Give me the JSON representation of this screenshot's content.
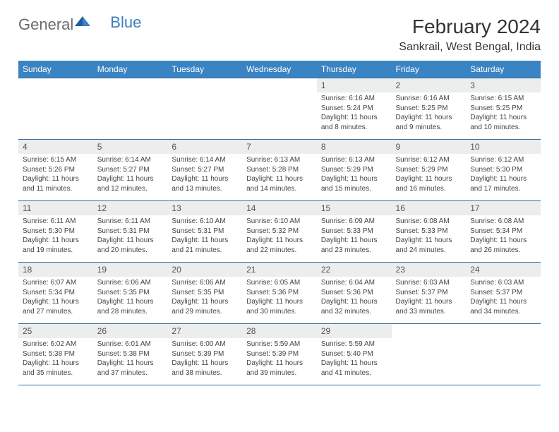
{
  "brand": {
    "part1": "General",
    "part2": "Blue"
  },
  "title": "February 2024",
  "location": "Sankrail, West Bengal, India",
  "colors": {
    "header_bg": "#3a84c4",
    "header_text": "#ffffff",
    "daynum_bg": "#eceded",
    "cell_border": "#3a6e99",
    "logo_blue": "#3a7fbd",
    "logo_gray": "#6b6b6b"
  },
  "weekdays": [
    "Sunday",
    "Monday",
    "Tuesday",
    "Wednesday",
    "Thursday",
    "Friday",
    "Saturday"
  ],
  "grid": {
    "first_weekday_index": 4,
    "days_in_month": 29
  },
  "days": {
    "1": {
      "sunrise": "6:16 AM",
      "sunset": "5:24 PM",
      "daylight": "11 hours and 8 minutes."
    },
    "2": {
      "sunrise": "6:16 AM",
      "sunset": "5:25 PM",
      "daylight": "11 hours and 9 minutes."
    },
    "3": {
      "sunrise": "6:15 AM",
      "sunset": "5:25 PM",
      "daylight": "11 hours and 10 minutes."
    },
    "4": {
      "sunrise": "6:15 AM",
      "sunset": "5:26 PM",
      "daylight": "11 hours and 11 minutes."
    },
    "5": {
      "sunrise": "6:14 AM",
      "sunset": "5:27 PM",
      "daylight": "11 hours and 12 minutes."
    },
    "6": {
      "sunrise": "6:14 AM",
      "sunset": "5:27 PM",
      "daylight": "11 hours and 13 minutes."
    },
    "7": {
      "sunrise": "6:13 AM",
      "sunset": "5:28 PM",
      "daylight": "11 hours and 14 minutes."
    },
    "8": {
      "sunrise": "6:13 AM",
      "sunset": "5:29 PM",
      "daylight": "11 hours and 15 minutes."
    },
    "9": {
      "sunrise": "6:12 AM",
      "sunset": "5:29 PM",
      "daylight": "11 hours and 16 minutes."
    },
    "10": {
      "sunrise": "6:12 AM",
      "sunset": "5:30 PM",
      "daylight": "11 hours and 17 minutes."
    },
    "11": {
      "sunrise": "6:11 AM",
      "sunset": "5:30 PM",
      "daylight": "11 hours and 19 minutes."
    },
    "12": {
      "sunrise": "6:11 AM",
      "sunset": "5:31 PM",
      "daylight": "11 hours and 20 minutes."
    },
    "13": {
      "sunrise": "6:10 AM",
      "sunset": "5:31 PM",
      "daylight": "11 hours and 21 minutes."
    },
    "14": {
      "sunrise": "6:10 AM",
      "sunset": "5:32 PM",
      "daylight": "11 hours and 22 minutes."
    },
    "15": {
      "sunrise": "6:09 AM",
      "sunset": "5:33 PM",
      "daylight": "11 hours and 23 minutes."
    },
    "16": {
      "sunrise": "6:08 AM",
      "sunset": "5:33 PM",
      "daylight": "11 hours and 24 minutes."
    },
    "17": {
      "sunrise": "6:08 AM",
      "sunset": "5:34 PM",
      "daylight": "11 hours and 26 minutes."
    },
    "18": {
      "sunrise": "6:07 AM",
      "sunset": "5:34 PM",
      "daylight": "11 hours and 27 minutes."
    },
    "19": {
      "sunrise": "6:06 AM",
      "sunset": "5:35 PM",
      "daylight": "11 hours and 28 minutes."
    },
    "20": {
      "sunrise": "6:06 AM",
      "sunset": "5:35 PM",
      "daylight": "11 hours and 29 minutes."
    },
    "21": {
      "sunrise": "6:05 AM",
      "sunset": "5:36 PM",
      "daylight": "11 hours and 30 minutes."
    },
    "22": {
      "sunrise": "6:04 AM",
      "sunset": "5:36 PM",
      "daylight": "11 hours and 32 minutes."
    },
    "23": {
      "sunrise": "6:03 AM",
      "sunset": "5:37 PM",
      "daylight": "11 hours and 33 minutes."
    },
    "24": {
      "sunrise": "6:03 AM",
      "sunset": "5:37 PM",
      "daylight": "11 hours and 34 minutes."
    },
    "25": {
      "sunrise": "6:02 AM",
      "sunset": "5:38 PM",
      "daylight": "11 hours and 35 minutes."
    },
    "26": {
      "sunrise": "6:01 AM",
      "sunset": "5:38 PM",
      "daylight": "11 hours and 37 minutes."
    },
    "27": {
      "sunrise": "6:00 AM",
      "sunset": "5:39 PM",
      "daylight": "11 hours and 38 minutes."
    },
    "28": {
      "sunrise": "5:59 AM",
      "sunset": "5:39 PM",
      "daylight": "11 hours and 39 minutes."
    },
    "29": {
      "sunrise": "5:59 AM",
      "sunset": "5:40 PM",
      "daylight": "11 hours and 41 minutes."
    }
  },
  "labels": {
    "sunrise_prefix": "Sunrise: ",
    "sunset_prefix": "Sunset: ",
    "daylight_prefix": "Daylight: "
  }
}
